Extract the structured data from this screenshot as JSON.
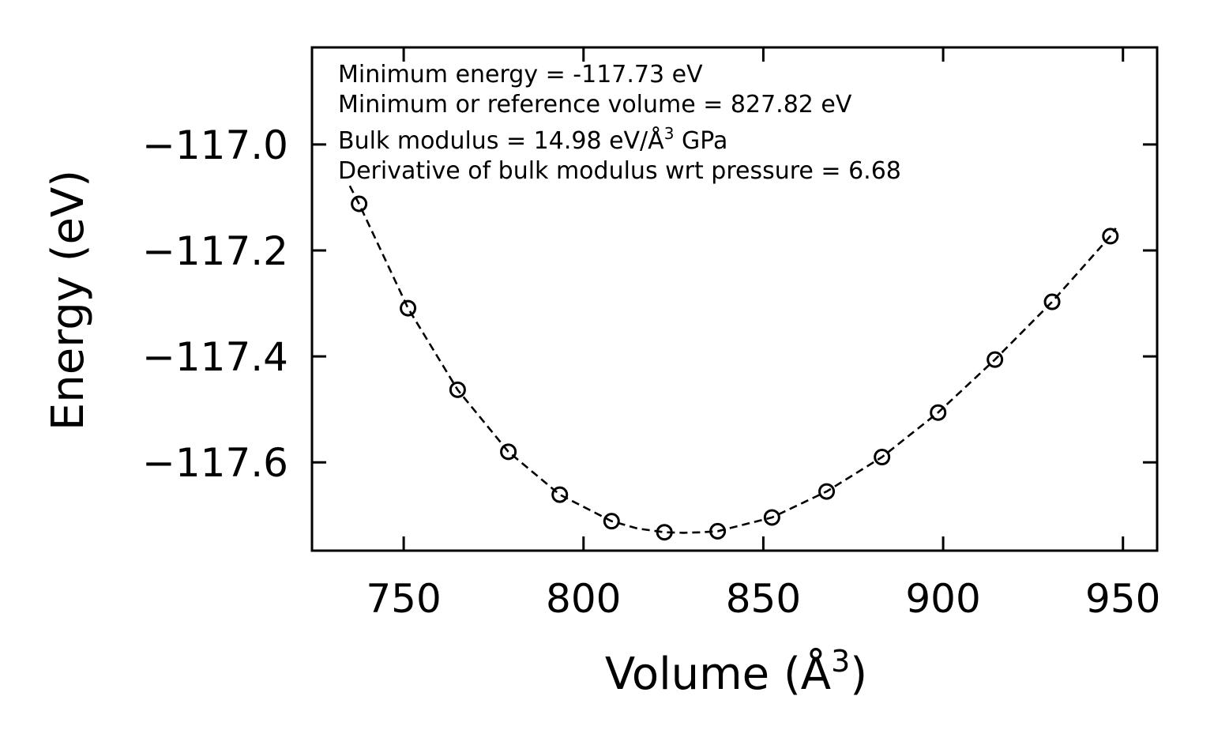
{
  "chart_data": {
    "type": "scatter",
    "title": "",
    "xlabel": "Volume (Å",
    "xlabel_sup": "3",
    "xlabel_end": ")",
    "ylabel": "Energy (eV)",
    "xlim": [
      724.5,
      959.5
    ],
    "ylim": [
      -117.7667,
      -116.8167
    ],
    "x_ticks": [
      750,
      800,
      850,
      900,
      950
    ],
    "x_tick_labels": [
      "750",
      "800",
      "850",
      "900",
      "950"
    ],
    "y_ticks": [
      -117.0,
      -117.2,
      -117.4,
      -117.6
    ],
    "y_tick_labels": [
      "−117.0",
      "−117.2",
      "−117.4",
      "−117.6"
    ],
    "grid": false,
    "series": [
      {
        "name": "data",
        "style": "open-circles",
        "color": "#000000",
        "x": [
          737.6,
          751.2,
          765.0,
          779.1,
          793.4,
          807.8,
          822.5,
          837.3,
          852.4,
          867.6,
          883.0,
          898.6,
          914.4,
          930.3,
          946.5
        ],
        "y": [
          -117.112,
          -117.309,
          -117.463,
          -117.58,
          -117.661,
          -117.711,
          -117.732,
          -117.73,
          -117.704,
          -117.655,
          -117.59,
          -117.506,
          -117.406,
          -117.297,
          -117.173
        ]
      },
      {
        "name": "fit",
        "style": "dashed-line",
        "color": "#000000",
        "x": [
          735.0,
          737.6,
          751.2,
          765.0,
          779.1,
          793.4,
          807.8,
          815.0,
          822.5,
          827.8,
          833.0,
          837.3,
          852.4,
          867.6,
          883.0,
          898.6,
          914.4,
          930.3,
          946.5,
          948.0
        ],
        "y": [
          -117.078,
          -117.112,
          -117.309,
          -117.463,
          -117.58,
          -117.661,
          -117.711,
          -117.725,
          -117.732,
          -117.733,
          -117.732,
          -117.73,
          -117.704,
          -117.655,
          -117.59,
          -117.506,
          -117.406,
          -117.297,
          -117.173,
          -117.158
        ]
      }
    ],
    "annotations": {
      "line1": "Minimum energy = -117.73 eV",
      "line2": "Minimum or reference volume = 827.82 eV",
      "line3_pre": "Bulk modulus = 14.98 eV/Å",
      "line3_sup": "3",
      "line3_post": " GPa",
      "line4": "Derivative of bulk modulus wrt pressure = 6.68"
    }
  }
}
